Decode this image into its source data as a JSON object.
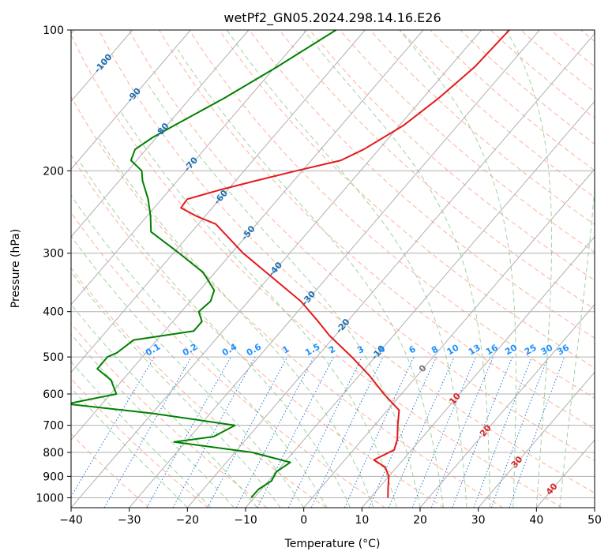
{
  "chart_data": {
    "type": "line",
    "subtype": "skew-T log-P diagram",
    "title": "wetPf2_GN05.2024.298.14.16.E26",
    "xlabel": "Temperature (°C)",
    "ylabel": "Pressure (hPa)",
    "xlim": [
      -40,
      50
    ],
    "ylim": [
      1050,
      100
    ],
    "y_scale": "log",
    "grid": true,
    "x_ticks": [
      "−40",
      "−30",
      "−20",
      "−10",
      "0",
      "10",
      "20",
      "30",
      "40",
      "50"
    ],
    "y_ticks": [
      "100",
      "200",
      "300",
      "400",
      "500",
      "600",
      "700",
      "800",
      "900",
      "1000"
    ],
    "colors": {
      "temperature": "#e41a1c",
      "dewpoint": "#008000",
      "isotherm": "#b0b0b0",
      "dry_adiabat": "#ffb09a",
      "moist_adiabat": "#9fd39f",
      "mixing_ratio": "#1f77d4",
      "isotherm_label_cold": "#1f6fb4",
      "isotherm_label_zero": "#777777",
      "isotherm_label_warm": "#d62728",
      "mixing_ratio_label": "#1e90ff"
    },
    "series": [
      {
        "key": "temperature",
        "points": [
          [
            100,
            -35.2
          ],
          [
            120,
            -35.7
          ],
          [
            140,
            -37.3
          ],
          [
            160,
            -39.3
          ],
          [
            180,
            -42.6
          ],
          [
            190,
            -44.9
          ],
          [
            200,
            -51.0
          ],
          [
            210,
            -56.5
          ],
          [
            220,
            -61.5
          ],
          [
            230,
            -65.6
          ],
          [
            240,
            -65.4
          ],
          [
            250,
            -61.5
          ],
          [
            260,
            -57.0
          ],
          [
            300,
            -48.0
          ],
          [
            340,
            -39.0
          ],
          [
            380,
            -31.0
          ],
          [
            420,
            -25.0
          ],
          [
            450,
            -21.0
          ],
          [
            500,
            -14.0
          ],
          [
            550,
            -8.0
          ],
          [
            600,
            -3.0
          ],
          [
            650,
            2.0
          ],
          [
            700,
            4.0
          ],
          [
            750,
            6.0
          ],
          [
            790,
            7.0
          ],
          [
            830,
            5.0
          ],
          [
            860,
            8.0
          ],
          [
            900,
            10.0
          ],
          [
            950,
            11.5
          ],
          [
            1000,
            13.0
          ]
        ]
      },
      {
        "key": "dewpoint",
        "points": [
          [
            100,
            -65.0
          ],
          [
            120,
            -69.7
          ],
          [
            140,
            -74.2
          ],
          [
            160,
            -78.7
          ],
          [
            170,
            -80.7
          ],
          [
            180,
            -81.9
          ],
          [
            190,
            -81.0
          ],
          [
            200,
            -77.6
          ],
          [
            210,
            -76.0
          ],
          [
            230,
            -72.3
          ],
          [
            250,
            -69.4
          ],
          [
            270,
            -67.0
          ],
          [
            300,
            -59.0
          ],
          [
            330,
            -52.0
          ],
          [
            360,
            -47.5
          ],
          [
            380,
            -46.5
          ],
          [
            400,
            -47.0
          ],
          [
            420,
            -45.0
          ],
          [
            440,
            -45.0
          ],
          [
            460,
            -54.0
          ],
          [
            490,
            -55.0
          ],
          [
            500,
            -56.0
          ],
          [
            530,
            -56.0
          ],
          [
            560,
            -52.0
          ],
          [
            600,
            -49.0
          ],
          [
            630,
            -56.0
          ],
          [
            660,
            -40.0
          ],
          [
            700,
            -24.0
          ],
          [
            740,
            -26.0
          ],
          [
            760,
            -32.0
          ],
          [
            800,
            -17.0
          ],
          [
            840,
            -9.0
          ],
          [
            880,
            -10.0
          ],
          [
            920,
            -9.5
          ],
          [
            960,
            -10.5
          ],
          [
            1000,
            -10.5
          ]
        ]
      }
    ],
    "isotherm_labels": [
      {
        "t": -100,
        "p": 118
      },
      {
        "t": -90,
        "p": 138
      },
      {
        "t": -80,
        "p": 164
      },
      {
        "t": -70,
        "p": 194
      },
      {
        "t": -60,
        "p": 228
      },
      {
        "t": -50,
        "p": 272
      },
      {
        "t": -40,
        "p": 325
      },
      {
        "t": -30,
        "p": 375
      },
      {
        "t": -20,
        "p": 430
      },
      {
        "t": -10,
        "p": 490
      },
      {
        "t": 0,
        "p": 530
      },
      {
        "t": 10,
        "p": 615
      },
      {
        "t": 20,
        "p": 720
      },
      {
        "t": 30,
        "p": 840
      },
      {
        "t": 40,
        "p": 960
      }
    ],
    "mixing_ratio_labels": [
      "0.1",
      "0.2",
      "0.4",
      "0.6",
      "1",
      "1.5",
      "2",
      "3",
      "4",
      "6",
      "8",
      "10",
      "13",
      "16",
      "20",
      "25",
      "30",
      "36"
    ]
  }
}
